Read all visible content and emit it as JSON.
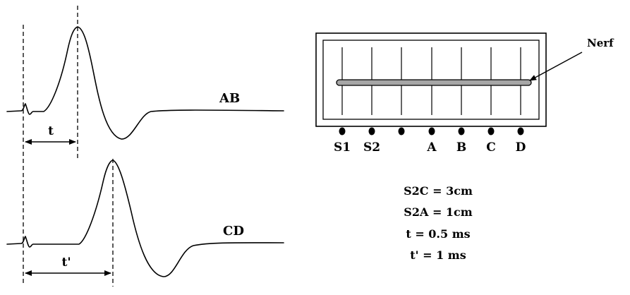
{
  "traces": {
    "ab": {
      "label": "AB",
      "interval_label": "t"
    },
    "cd": {
      "label": "CD",
      "interval_label": "t'"
    }
  },
  "apparatus": {
    "nerve_label": "Nerf",
    "electrodes": [
      "S1",
      "S2",
      "",
      "A",
      "B",
      "C",
      "D"
    ]
  },
  "givens": [
    "S2C = 3cm",
    "S2A = 1cm",
    "t = 0.5 ms",
    "t' = 1 ms"
  ],
  "colors": {
    "nerve_fill": "#a6a6a6",
    "ink": "#000000"
  }
}
